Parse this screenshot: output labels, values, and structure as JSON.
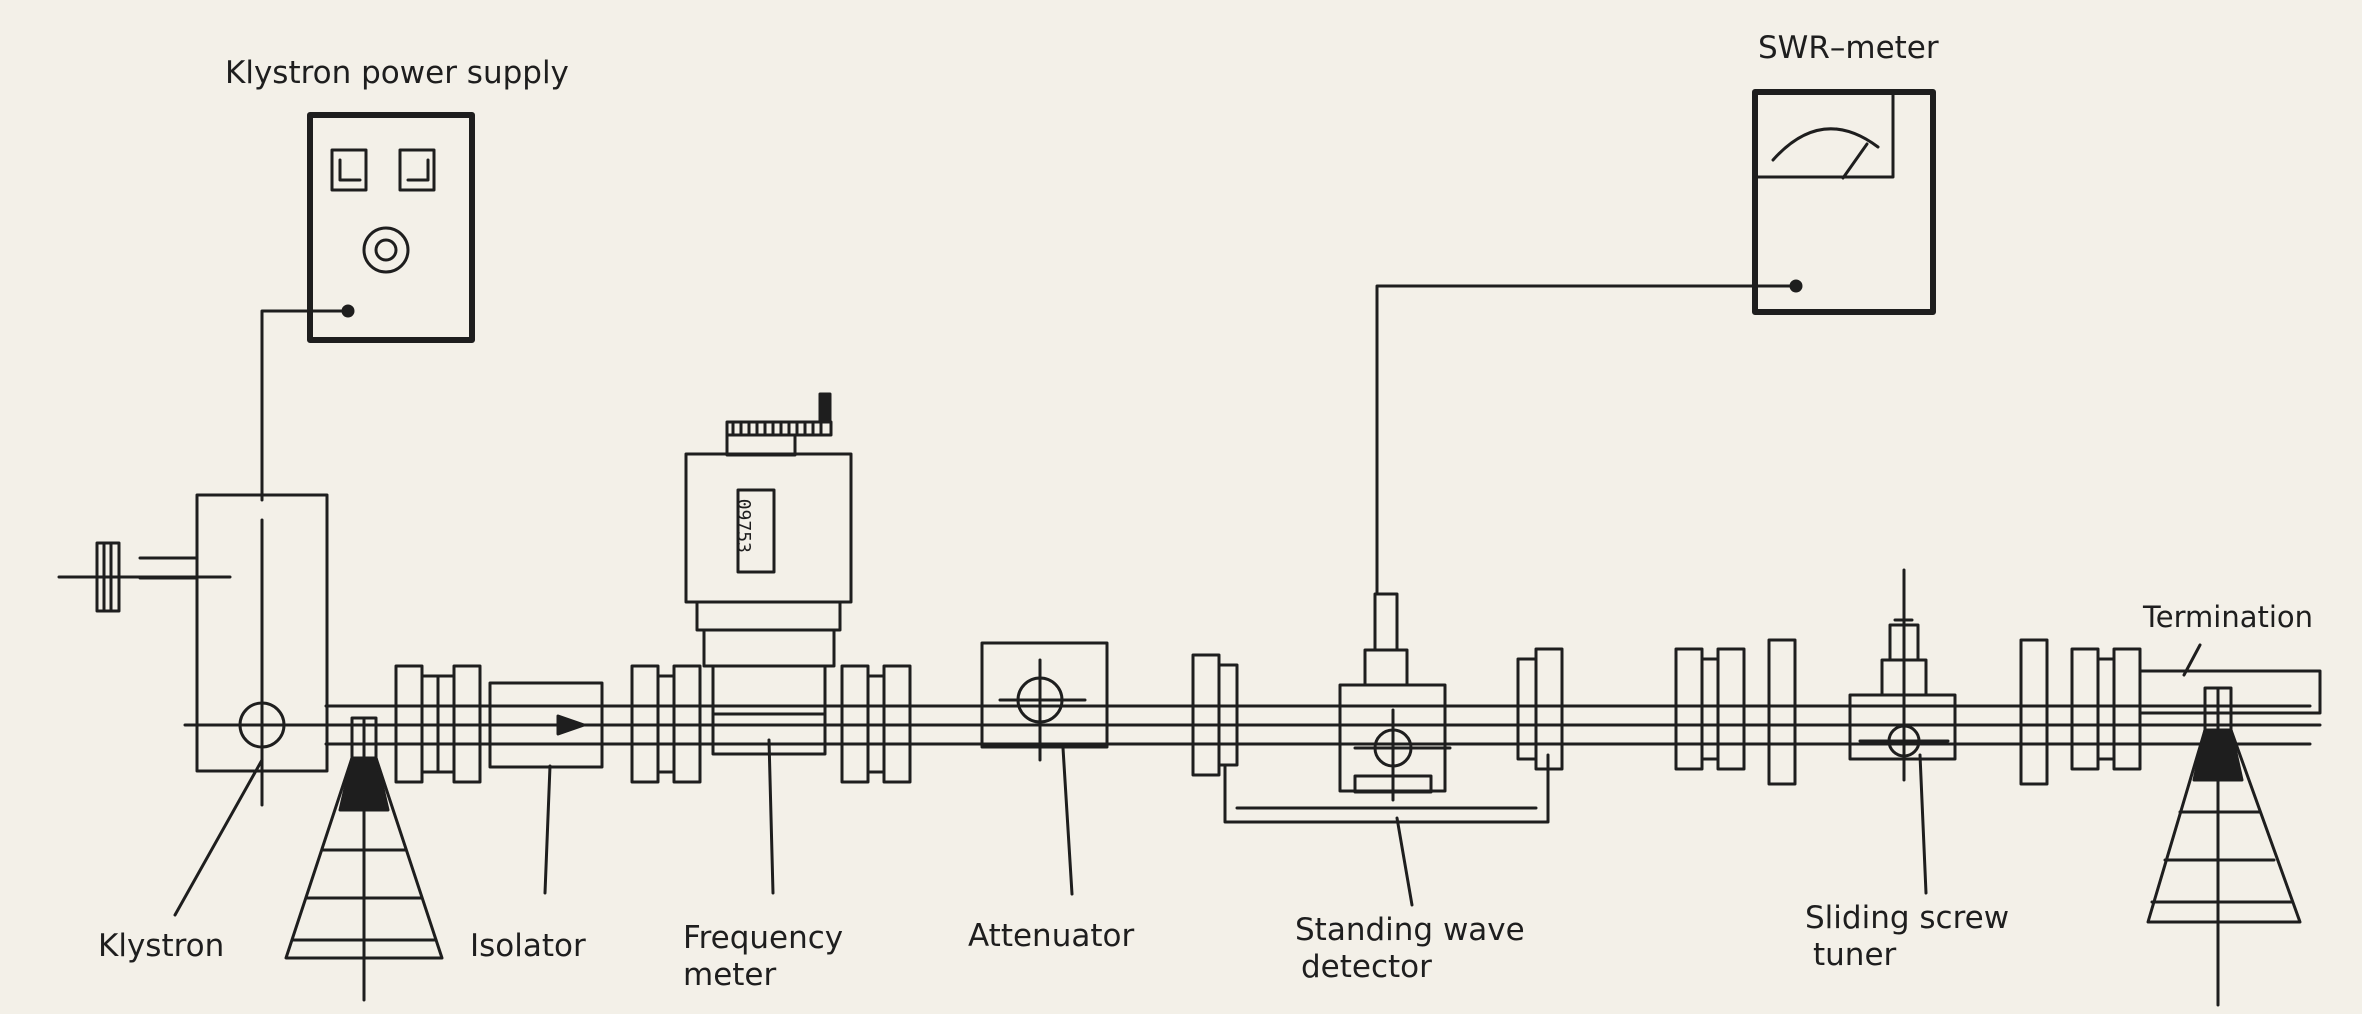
{
  "labels": {
    "power_supply": "Klystron power supply",
    "swr_meter": "SWR–meter",
    "termination": "Termination",
    "klystron": "Klystron",
    "isolator": "Isolator",
    "frequency_meter": [
      "Frequency",
      "meter"
    ],
    "attenuator": "Attenuator",
    "standing_wave_detector": [
      "Standing wave",
      "detector"
    ],
    "sliding_screw_tuner": [
      "Sliding screw",
      "tuner"
    ],
    "freq_meter_readout": "09753"
  },
  "colors": {
    "ink": "#1e1e1e",
    "paper": "#f3f0e8"
  }
}
